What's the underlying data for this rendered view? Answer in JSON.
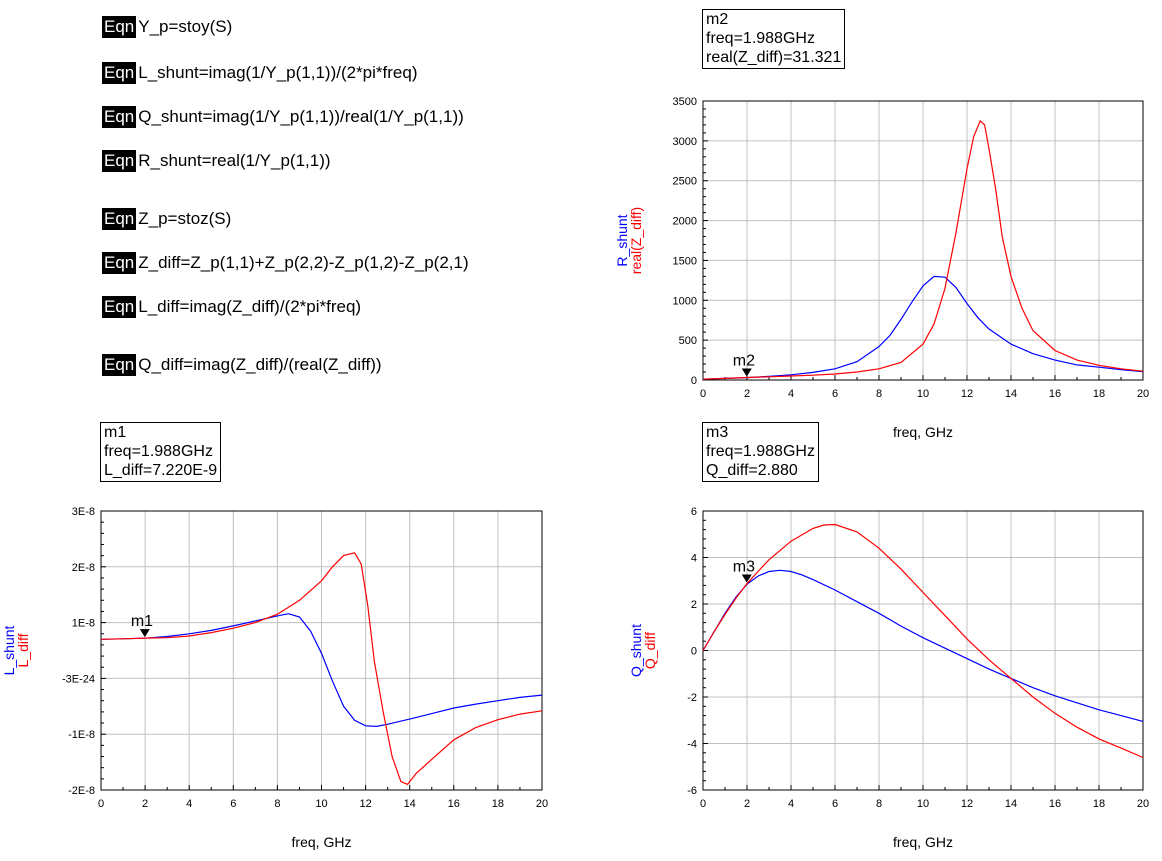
{
  "equation_badge": "Eqn",
  "equations": [
    "Y_p=stoy(S)",
    "L_shunt=imag(1/Y_p(1,1))/(2*pi*freq)",
    "Q_shunt=imag(1/Y_p(1,1))/real(1/Y_p(1,1))",
    "R_shunt=real(1/Y_p(1,1))",
    "Z_p=stoz(S)",
    "Z_diff=Z_p(1,1)+Z_p(2,2)-Z_p(1,2)-Z_p(2,1)",
    "L_diff=imag(Z_diff)/(2*pi*freq)",
    "Q_diff=imag(Z_diff)/(real(Z_diff))"
  ],
  "markers": {
    "m1": {
      "name": "m1",
      "freq": "freq=1.988GHz",
      "value": "L_diff=7.220E-9"
    },
    "m2": {
      "name": "m2",
      "freq": "freq=1.988GHz",
      "value": "real(Z_diff)=31.321"
    },
    "m3": {
      "name": "m3",
      "freq": "freq=1.988GHz",
      "value": "Q_diff=2.880"
    }
  },
  "colors": {
    "shunt": "#0000ff",
    "diff": "#ff0000",
    "grid": "#c0c0c0"
  },
  "chart_data": [
    {
      "id": "resistance",
      "type": "line",
      "xlabel": "freq, GHz",
      "ylabels": [
        {
          "text": "R_shunt",
          "color": "#0000ff"
        },
        {
          "text": "real(Z_diff)",
          "color": "#ff0000"
        }
      ],
      "xlim": [
        0,
        20
      ],
      "ylim": [
        0,
        3500
      ],
      "xticks": [
        "0",
        "2",
        "4",
        "6",
        "8",
        "10",
        "12",
        "14",
        "16",
        "18",
        "20"
      ],
      "yticks": [
        {
          "v": 0,
          "label": "0"
        },
        {
          "v": 500,
          "label": "500"
        },
        {
          "v": 1000,
          "label": "1000"
        },
        {
          "v": 1500,
          "label": "1500"
        },
        {
          "v": 2000,
          "label": "2000"
        },
        {
          "v": 2500,
          "label": "2500"
        },
        {
          "v": 3000,
          "label": "3000"
        },
        {
          "v": 3500,
          "label": "3500"
        }
      ],
      "marker": {
        "label": "m2",
        "x": 1.988,
        "y": 31.321
      },
      "series": [
        {
          "name": "R_shunt",
          "color": "#0000ff",
          "x": [
            0,
            1,
            2,
            3,
            4,
            5,
            6,
            7,
            8,
            8.5,
            9,
            9.5,
            10,
            10.5,
            11,
            11.5,
            12,
            12.5,
            13,
            14,
            15,
            16,
            17,
            18,
            19,
            20
          ],
          "y": [
            10,
            20,
            30,
            45,
            65,
            95,
            140,
            230,
            420,
            560,
            760,
            980,
            1180,
            1300,
            1290,
            1160,
            960,
            780,
            640,
            450,
            330,
            250,
            190,
            160,
            130,
            105
          ]
        },
        {
          "name": "real(Z_diff)",
          "color": "#ff0000",
          "x": [
            0,
            1,
            2,
            3,
            4,
            5,
            6,
            7,
            8,
            9,
            10,
            10.5,
            11,
            11.5,
            12,
            12.3,
            12.6,
            12.8,
            13,
            13.3,
            13.6,
            14,
            14.5,
            15,
            16,
            17,
            18,
            19,
            20
          ],
          "y": [
            10,
            20,
            31.3,
            40,
            50,
            60,
            75,
            100,
            140,
            220,
            450,
            700,
            1150,
            1850,
            2650,
            3050,
            3250,
            3200,
            2900,
            2400,
            1800,
            1300,
            900,
            620,
            370,
            250,
            185,
            140,
            110
          ]
        }
      ]
    },
    {
      "id": "inductance",
      "type": "line",
      "xlabel": "freq, GHz",
      "ylabels": [
        {
          "text": "L_shunt",
          "color": "#0000ff"
        },
        {
          "text": "L_diff",
          "color": "#ff0000"
        }
      ],
      "xlim": [
        0,
        20
      ],
      "ylim": [
        -2e-08,
        3e-08
      ],
      "xticks": [
        "0",
        "2",
        "4",
        "6",
        "8",
        "10",
        "12",
        "14",
        "16",
        "18",
        "20"
      ],
      "yticks": [
        {
          "v": -2e-08,
          "label": "-2E-8"
        },
        {
          "v": -1e-08,
          "label": "-1E-8"
        },
        {
          "v": 0,
          "label": "-3E-24"
        },
        {
          "v": 1e-08,
          "label": "1E-8"
        },
        {
          "v": 2e-08,
          "label": "2E-8"
        },
        {
          "v": 3e-08,
          "label": "3E-8"
        }
      ],
      "marker": {
        "label": "m1",
        "x": 1.988,
        "y": 7.22e-09
      },
      "series": [
        {
          "name": "L_shunt",
          "color": "#0000ff",
          "x": [
            0,
            1,
            2,
            3,
            4,
            5,
            6,
            7,
            8,
            8.5,
            9,
            9.5,
            10,
            10.5,
            11,
            11.5,
            12,
            12.5,
            13,
            14,
            15,
            16,
            17,
            18,
            19,
            20
          ],
          "y": [
            7e-09,
            7.1e-09,
            7.2e-09,
            7.5e-09,
            8e-09,
            8.6e-09,
            9.4e-09,
            1.03e-08,
            1.12e-08,
            1.16e-08,
            1.1e-08,
            8.5e-09,
            4.5e-09,
            -5e-10,
            -5e-09,
            -7.5e-09,
            -8.5e-09,
            -8.6e-09,
            -8.2e-09,
            -7.3e-09,
            -6.3e-09,
            -5.3e-09,
            -4.6e-09,
            -4e-09,
            -3.4e-09,
            -3e-09
          ]
        },
        {
          "name": "L_diff",
          "color": "#ff0000",
          "x": [
            0,
            1,
            2,
            3,
            4,
            5,
            6,
            7,
            8,
            9,
            10,
            10.5,
            11,
            11.5,
            11.8,
            12.1,
            12.4,
            12.8,
            13.2,
            13.6,
            13.9,
            14.3,
            15,
            16,
            17,
            18,
            19,
            20
          ],
          "y": [
            7e-09,
            7.1e-09,
            7.22e-09,
            7.3e-09,
            7.6e-09,
            8.2e-09,
            9e-09,
            1e-08,
            1.15e-08,
            1.4e-08,
            1.75e-08,
            2e-08,
            2.2e-08,
            2.25e-08,
            2.05e-08,
            1.3e-08,
            3e-09,
            -6e-09,
            -1.4e-08,
            -1.85e-08,
            -1.9e-08,
            -1.7e-08,
            -1.45e-08,
            -1.1e-08,
            -8.8e-09,
            -7.4e-09,
            -6.4e-09,
            -5.8e-09
          ]
        }
      ]
    },
    {
      "id": "quality",
      "type": "line",
      "xlabel": "freq, GHz",
      "ylabels": [
        {
          "text": "Q_shunt",
          "color": "#0000ff"
        },
        {
          "text": "Q_diff",
          "color": "#ff0000"
        }
      ],
      "xlim": [
        0,
        20
      ],
      "ylim": [
        -6,
        6
      ],
      "xticks": [
        "0",
        "2",
        "4",
        "6",
        "8",
        "10",
        "12",
        "14",
        "16",
        "18",
        "20"
      ],
      "yticks": [
        {
          "v": -6,
          "label": "-6"
        },
        {
          "v": -4,
          "label": "-4"
        },
        {
          "v": -2,
          "label": "-2"
        },
        {
          "v": 0,
          "label": "0"
        },
        {
          "v": 2,
          "label": "2"
        },
        {
          "v": 4,
          "label": "4"
        },
        {
          "v": 6,
          "label": "6"
        }
      ],
      "marker": {
        "label": "m3",
        "x": 1.988,
        "y": 2.88
      },
      "series": [
        {
          "name": "Q_shunt",
          "color": "#0000ff",
          "x": [
            0,
            0.5,
            1,
            1.5,
            2,
            2.5,
            3,
            3.5,
            4,
            4.5,
            5,
            6,
            7,
            8,
            9,
            10,
            11,
            12,
            13,
            14,
            15,
            16,
            17,
            18,
            19,
            20
          ],
          "y": [
            0,
            0.8,
            1.6,
            2.3,
            2.85,
            3.2,
            3.4,
            3.45,
            3.4,
            3.25,
            3.05,
            2.6,
            2.1,
            1.6,
            1.05,
            0.55,
            0.1,
            -0.35,
            -0.8,
            -1.2,
            -1.6,
            -1.95,
            -2.25,
            -2.55,
            -2.8,
            -3.05
          ]
        },
        {
          "name": "Q_diff",
          "color": "#ff0000",
          "x": [
            0,
            0.5,
            1,
            1.5,
            2,
            2.5,
            3,
            4,
            5,
            5.5,
            6,
            7,
            8,
            9,
            10,
            11,
            12,
            13,
            14,
            15,
            16,
            17,
            18,
            19,
            20
          ],
          "y": [
            0,
            0.8,
            1.55,
            2.25,
            2.88,
            3.4,
            3.9,
            4.7,
            5.25,
            5.4,
            5.42,
            5.1,
            4.4,
            3.5,
            2.5,
            1.5,
            0.5,
            -0.4,
            -1.2,
            -2.0,
            -2.7,
            -3.3,
            -3.8,
            -4.2,
            -4.6
          ]
        }
      ]
    }
  ]
}
